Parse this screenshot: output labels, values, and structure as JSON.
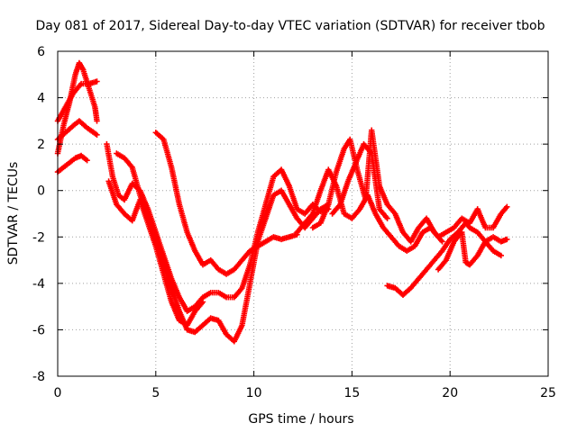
{
  "chart_data": {
    "type": "scatter",
    "title": "Day 081 of 2017, Sidereal Day-to-day VTEC variation (SDTVAR) for receiver tbob",
    "xlabel": "GPS time / hours",
    "ylabel": "SDTVAR / TECUs",
    "xlim": [
      0,
      25
    ],
    "ylim": [
      -8,
      6
    ],
    "xticks": [
      0,
      5,
      10,
      15,
      20,
      25
    ],
    "yticks": [
      -8,
      -6,
      -4,
      -2,
      0,
      2,
      4,
      6
    ],
    "xtick_labels": [
      "0",
      "5",
      "10",
      "15",
      "20",
      "25"
    ],
    "ytick_labels": [
      "-8",
      "-6",
      "-4",
      "-2",
      "0",
      "2",
      "4",
      "6"
    ],
    "grid": true,
    "marker": "+",
    "color": "#ff0000",
    "series": [
      {
        "name": "series-1",
        "points": [
          [
            0,
            1.6
          ],
          [
            0.3,
            2.8
          ],
          [
            0.6,
            3.8
          ],
          [
            0.9,
            5.0
          ],
          [
            1.1,
            5.5
          ],
          [
            1.3,
            5.2
          ],
          [
            1.6,
            4.4
          ],
          [
            1.9,
            3.6
          ],
          [
            2.0,
            3.0
          ]
        ]
      },
      {
        "name": "series-2",
        "points": [
          [
            0,
            3.0
          ],
          [
            0.4,
            3.6
          ],
          [
            0.8,
            4.2
          ],
          [
            1.2,
            4.6
          ],
          [
            1.6,
            4.6
          ],
          [
            2.0,
            4.7
          ]
        ]
      },
      {
        "name": "series-3",
        "points": [
          [
            0,
            2.2
          ],
          [
            0.4,
            2.5
          ],
          [
            0.8,
            2.8
          ],
          [
            1.1,
            3.0
          ],
          [
            1.5,
            2.7
          ],
          [
            2.0,
            2.4
          ]
        ]
      },
      {
        "name": "series-4",
        "points": [
          [
            0,
            0.8
          ],
          [
            0.3,
            1.0
          ],
          [
            0.6,
            1.2
          ],
          [
            0.9,
            1.4
          ],
          [
            1.2,
            1.5
          ],
          [
            1.5,
            1.3
          ]
        ]
      },
      {
        "name": "series-5",
        "points": [
          [
            2.5,
            2.0
          ],
          [
            2.8,
            0.6
          ],
          [
            3.1,
            -0.2
          ],
          [
            3.4,
            -0.4
          ],
          [
            3.8,
            0.3
          ],
          [
            4.2,
            0.0
          ],
          [
            4.6,
            -0.8
          ],
          [
            5.0,
            -1.8
          ],
          [
            5.4,
            -2.8
          ],
          [
            5.8,
            -3.8
          ],
          [
            6.2,
            -4.6
          ],
          [
            6.6,
            -5.2
          ],
          [
            7.0,
            -5.0
          ],
          [
            7.4,
            -4.6
          ],
          [
            7.8,
            -4.4
          ],
          [
            8.2,
            -4.4
          ],
          [
            8.6,
            -4.6
          ],
          [
            9.0,
            -4.6
          ],
          [
            9.4,
            -4.2
          ],
          [
            9.8,
            -3.2
          ],
          [
            10.2,
            -1.8
          ],
          [
            10.6,
            -0.6
          ],
          [
            11.0,
            0.6
          ],
          [
            11.4,
            0.9
          ],
          [
            11.8,
            0.2
          ],
          [
            12.2,
            -0.8
          ],
          [
            12.6,
            -1.0
          ],
          [
            13.0,
            -0.6
          ],
          [
            13.4,
            -0.9
          ],
          [
            13.8,
            -0.8
          ]
        ]
      },
      {
        "name": "series-6",
        "points": [
          [
            3.0,
            1.6
          ],
          [
            3.4,
            1.4
          ],
          [
            3.8,
            1.0
          ],
          [
            4.2,
            -0.2
          ],
          [
            4.6,
            -1.2
          ],
          [
            5.0,
            -2.2
          ],
          [
            5.4,
            -3.2
          ],
          [
            5.8,
            -4.2
          ],
          [
            6.2,
            -5.2
          ],
          [
            6.6,
            -6.0
          ],
          [
            7.0,
            -6.1
          ],
          [
            7.4,
            -5.8
          ],
          [
            7.8,
            -5.5
          ],
          [
            8.2,
            -5.6
          ],
          [
            8.6,
            -6.2
          ],
          [
            9.0,
            -6.5
          ],
          [
            9.4,
            -5.8
          ],
          [
            9.8,
            -4.0
          ],
          [
            10.2,
            -2.2
          ],
          [
            10.6,
            -1.2
          ],
          [
            11.0,
            -0.2
          ],
          [
            11.4,
            0.0
          ],
          [
            11.8,
            -0.6
          ],
          [
            12.2,
            -1.2
          ],
          [
            12.6,
            -1.6
          ],
          [
            13.0,
            -1.2
          ],
          [
            13.4,
            -0.8
          ],
          [
            13.8,
            -0.6
          ]
        ]
      },
      {
        "name": "series-7",
        "points": [
          [
            5.0,
            2.5
          ],
          [
            5.4,
            2.2
          ],
          [
            5.8,
            1.0
          ],
          [
            6.2,
            -0.6
          ],
          [
            6.6,
            -1.8
          ],
          [
            7.0,
            -2.6
          ],
          [
            7.4,
            -3.2
          ],
          [
            7.8,
            -3.0
          ],
          [
            8.2,
            -3.4
          ],
          [
            8.6,
            -3.6
          ],
          [
            9.0,
            -3.4
          ],
          [
            9.4,
            -3.0
          ],
          [
            9.8,
            -2.6
          ],
          [
            10.2,
            -2.4
          ],
          [
            10.6,
            -2.2
          ],
          [
            11.0,
            -2.0
          ],
          [
            11.4,
            -2.1
          ],
          [
            11.8,
            -2.0
          ],
          [
            12.2,
            -1.9
          ]
        ]
      },
      {
        "name": "series-8",
        "points": [
          [
            2.6,
            0.4
          ],
          [
            3.0,
            -0.6
          ],
          [
            3.4,
            -1.0
          ],
          [
            3.8,
            -1.3
          ],
          [
            4.2,
            -0.4
          ],
          [
            4.6,
            -1.4
          ],
          [
            5.0,
            -2.4
          ],
          [
            5.4,
            -3.6
          ],
          [
            5.8,
            -4.8
          ],
          [
            6.2,
            -5.6
          ],
          [
            6.6,
            -5.8
          ],
          [
            7.0,
            -5.2
          ],
          [
            7.4,
            -4.8
          ]
        ]
      },
      {
        "name": "series-9",
        "points": [
          [
            12.2,
            -1.8
          ],
          [
            12.6,
            -1.4
          ],
          [
            13.0,
            -1.0
          ],
          [
            13.4,
            0.0
          ],
          [
            13.8,
            0.9
          ],
          [
            14.2,
            0.2
          ],
          [
            14.6,
            -1.0
          ],
          [
            15.0,
            -1.2
          ],
          [
            15.4,
            -0.8
          ],
          [
            15.8,
            -0.2
          ],
          [
            16.2,
            -1.0
          ],
          [
            16.6,
            -1.6
          ],
          [
            17.0,
            -2.0
          ],
          [
            17.4,
            -2.4
          ],
          [
            17.8,
            -2.6
          ],
          [
            18.2,
            -2.4
          ],
          [
            18.6,
            -1.8
          ],
          [
            19.0,
            -1.6
          ],
          [
            19.4,
            -2.0
          ],
          [
            19.8,
            -1.8
          ],
          [
            20.2,
            -1.6
          ],
          [
            20.6,
            -1.2
          ],
          [
            21.0,
            -1.4
          ],
          [
            21.4,
            -0.8
          ],
          [
            21.8,
            -1.6
          ],
          [
            22.2,
            -1.6
          ],
          [
            22.6,
            -1.0
          ],
          [
            22.9,
            -0.7
          ]
        ]
      },
      {
        "name": "series-10",
        "points": [
          [
            13.0,
            -1.6
          ],
          [
            13.4,
            -1.4
          ],
          [
            13.8,
            -0.6
          ],
          [
            14.2,
            0.8
          ],
          [
            14.6,
            1.8
          ],
          [
            14.9,
            2.2
          ],
          [
            15.3,
            0.8
          ],
          [
            15.7,
            -0.4
          ],
          [
            16.0,
            2.6
          ],
          [
            16.4,
            0.2
          ],
          [
            16.8,
            -0.6
          ],
          [
            17.2,
            -1.0
          ],
          [
            17.6,
            -1.8
          ],
          [
            18.0,
            -2.2
          ],
          [
            18.4,
            -1.6
          ],
          [
            18.8,
            -1.2
          ],
          [
            19.2,
            -1.8
          ],
          [
            19.6,
            -2.2
          ]
        ]
      },
      {
        "name": "series-11",
        "points": [
          [
            14.0,
            -1.0
          ],
          [
            14.4,
            -0.6
          ],
          [
            14.8,
            0.4
          ],
          [
            15.2,
            1.2
          ],
          [
            15.6,
            2.0
          ],
          [
            16.0,
            1.6
          ],
          [
            16.4,
            -0.8
          ],
          [
            16.8,
            -1.2
          ]
        ]
      },
      {
        "name": "series-12",
        "points": [
          [
            16.8,
            -4.1
          ],
          [
            17.2,
            -4.2
          ],
          [
            17.6,
            -4.5
          ],
          [
            18.0,
            -4.2
          ],
          [
            18.4,
            -3.8
          ],
          [
            18.8,
            -3.4
          ],
          [
            19.2,
            -3.0
          ],
          [
            19.6,
            -2.6
          ],
          [
            20.0,
            -2.1
          ],
          [
            20.4,
            -1.8
          ],
          [
            20.8,
            -1.4
          ],
          [
            21.0,
            -1.6
          ],
          [
            21.4,
            -1.8
          ],
          [
            21.8,
            -2.2
          ],
          [
            22.2,
            -2.0
          ],
          [
            22.6,
            -2.2
          ],
          [
            22.9,
            -2.1
          ]
        ]
      },
      {
        "name": "series-13",
        "points": [
          [
            19.4,
            -3.4
          ],
          [
            19.8,
            -3.0
          ],
          [
            20.2,
            -2.2
          ],
          [
            20.6,
            -1.8
          ],
          [
            20.8,
            -3.1
          ],
          [
            21.0,
            -3.2
          ],
          [
            21.4,
            -2.8
          ],
          [
            21.8,
            -2.2
          ],
          [
            22.2,
            -2.6
          ],
          [
            22.6,
            -2.8
          ]
        ]
      }
    ]
  }
}
